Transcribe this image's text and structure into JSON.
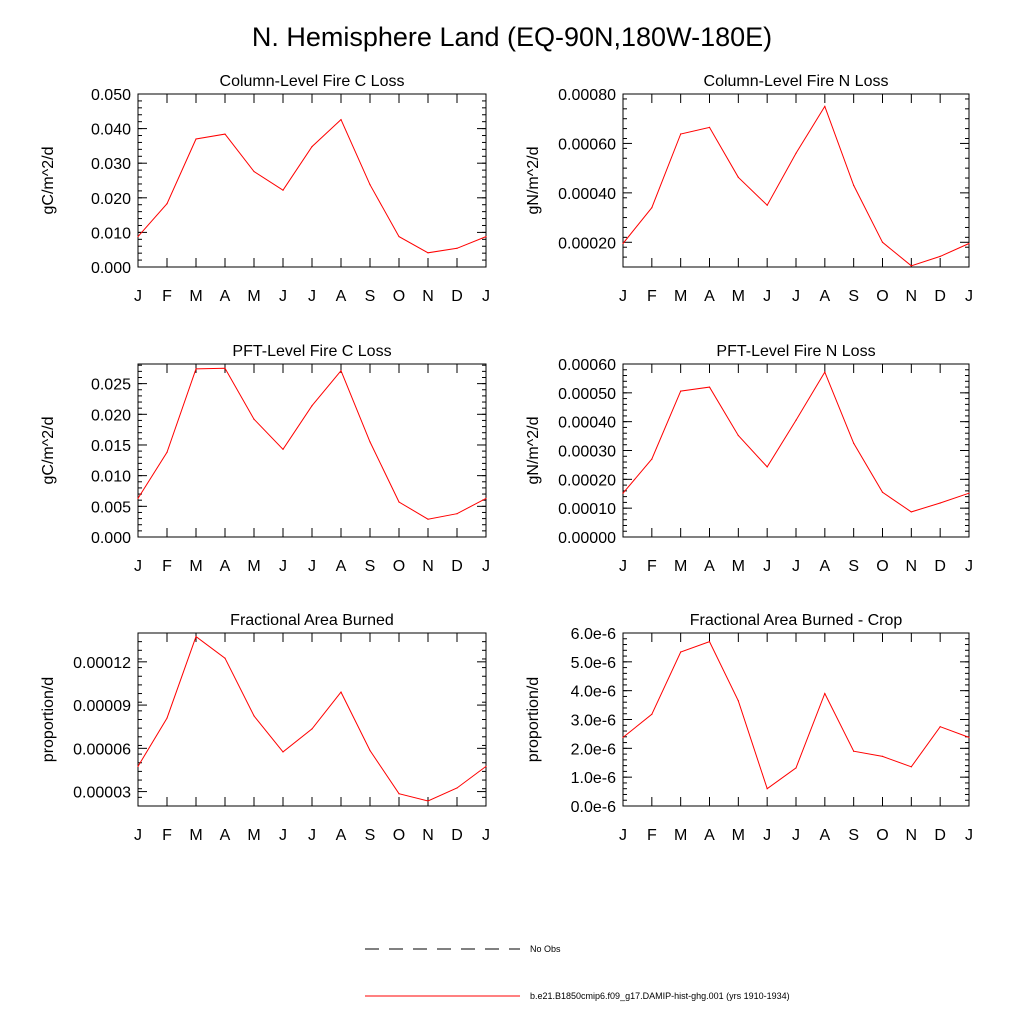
{
  "page_title": "N. Hemisphere Land (EQ-90N,180W-180E)",
  "legend": {
    "entries": [
      {
        "label": "No Obs",
        "color": "#000000",
        "style": "dashed"
      },
      {
        "label": "b.e21.B1850cmip6.f09_g17.DAMIP-hist-ghg.001 (yrs 1910-1934)",
        "color": "#ff0000",
        "style": "solid"
      }
    ]
  },
  "series_color": "#ff0000",
  "chart_data": [
    {
      "type": "line",
      "title": "Column-Level Fire C Loss",
      "ylabel": "gC/m^2/d",
      "xlabel": "",
      "categories": [
        "J",
        "F",
        "M",
        "A",
        "M",
        "J",
        "J",
        "A",
        "S",
        "O",
        "N",
        "D",
        "J"
      ],
      "ylim": [
        0,
        0.05
      ],
      "yticks": [
        0,
        0.01,
        0.02,
        0.03,
        0.04,
        0.05
      ],
      "ytick_labels": [
        "0.000",
        "0.010",
        "0.020",
        "0.030",
        "0.040",
        "0.050"
      ],
      "series": [
        {
          "values": [
            0.0088,
            0.0183,
            0.037,
            0.0384,
            0.0276,
            0.0222,
            0.0348,
            0.0426,
            0.0238,
            0.0088,
            0.0041,
            0.0054,
            0.0088
          ]
        }
      ]
    },
    {
      "type": "line",
      "title": "Column-Level Fire N Loss",
      "ylabel": "gN/m^2/d",
      "xlabel": "",
      "categories": [
        "J",
        "F",
        "M",
        "A",
        "M",
        "J",
        "J",
        "A",
        "S",
        "O",
        "N",
        "D",
        "J"
      ],
      "ylim": [
        0.0001,
        0.0008
      ],
      "yticks": [
        0.0002,
        0.0004,
        0.0006,
        0.0008
      ],
      "ytick_labels": [
        "0.00020",
        "0.00040",
        "0.00060",
        "0.00080"
      ],
      "series": [
        {
          "values": [
            0.000195,
            0.00034,
            0.000638,
            0.000665,
            0.000463,
            0.00035,
            0.00056,
            0.00075,
            0.00043,
            0.0002,
            0.000105,
            0.000143,
            0.000195
          ]
        }
      ]
    },
    {
      "type": "line",
      "title": "PFT-Level Fire C Loss",
      "ylabel": "gC/m^2/d",
      "xlabel": "",
      "categories": [
        "J",
        "F",
        "M",
        "A",
        "M",
        "J",
        "J",
        "A",
        "S",
        "O",
        "N",
        "D",
        "J"
      ],
      "ylim": [
        0,
        0.0282
      ],
      "yticks": [
        0,
        0.005,
        0.01,
        0.015,
        0.02,
        0.025
      ],
      "ytick_labels": [
        "0.000",
        "0.005",
        "0.010",
        "0.015",
        "0.020",
        "0.025"
      ],
      "series": [
        {
          "values": [
            0.0063,
            0.0138,
            0.0274,
            0.0275,
            0.0192,
            0.0143,
            0.0214,
            0.0271,
            0.0155,
            0.0057,
            0.0029,
            0.0038,
            0.0063
          ]
        }
      ]
    },
    {
      "type": "line",
      "title": "PFT-Level Fire N Loss",
      "ylabel": "gN/m^2/d",
      "xlabel": "",
      "categories": [
        "J",
        "F",
        "M",
        "A",
        "M",
        "J",
        "J",
        "A",
        "S",
        "O",
        "N",
        "D",
        "J"
      ],
      "ylim": [
        0,
        0.0006
      ],
      "yticks": [
        0,
        0.0001,
        0.0002,
        0.0003,
        0.0004,
        0.0005,
        0.0006
      ],
      "ytick_labels": [
        "0.00000",
        "0.00010",
        "0.00020",
        "0.00030",
        "0.00040",
        "0.00050",
        "0.00060"
      ],
      "series": [
        {
          "values": [
            0.000152,
            0.00027,
            0.000506,
            0.00052,
            0.000352,
            0.000243,
            0.000405,
            0.000572,
            0.000325,
            0.000155,
            8.7e-05,
            0.000118,
            0.000152
          ]
        }
      ]
    },
    {
      "type": "line",
      "title": "Fractional Area Burned",
      "ylabel": "proportion/d",
      "xlabel": "",
      "categories": [
        "J",
        "F",
        "M",
        "A",
        "M",
        "J",
        "J",
        "A",
        "S",
        "O",
        "N",
        "D",
        "J"
      ],
      "ylim": [
        2e-05,
        0.00014
      ],
      "yticks": [
        3e-05,
        6e-05,
        9e-05,
        0.00012
      ],
      "ytick_labels": [
        "0.00003",
        "0.00006",
        "0.00009",
        "0.00012"
      ],
      "series": [
        {
          "values": [
            4.75e-05,
            8.1e-05,
            0.0001375,
            0.0001225,
            8.25e-05,
            5.75e-05,
            7.35e-05,
            9.9e-05,
            5.85e-05,
            2.85e-05,
            2.35e-05,
            3.25e-05,
            4.75e-05
          ]
        }
      ]
    },
    {
      "type": "line",
      "title": "Fractional Area Burned - Crop",
      "ylabel": "proportion/d",
      "xlabel": "",
      "categories": [
        "J",
        "F",
        "M",
        "A",
        "M",
        "J",
        "J",
        "A",
        "S",
        "O",
        "N",
        "D",
        "J"
      ],
      "ylim": [
        0,
        6e-06
      ],
      "yticks": [
        0,
        1e-06,
        2e-06,
        3e-06,
        4e-06,
        5e-06,
        6e-06
      ],
      "ytick_labels": [
        "0.0e-6",
        "1.0e-6",
        "2.0e-6",
        "3.0e-6",
        "4.0e-6",
        "5.0e-6",
        "6.0e-6"
      ],
      "series": [
        {
          "values": [
            2.38e-06,
            3.18e-06,
            5.34e-06,
            5.7e-06,
            3.65e-06,
            6e-07,
            1.32e-06,
            3.9e-06,
            1.9e-06,
            1.72e-06,
            1.36e-06,
            2.75e-06,
            2.38e-06
          ]
        }
      ]
    }
  ]
}
